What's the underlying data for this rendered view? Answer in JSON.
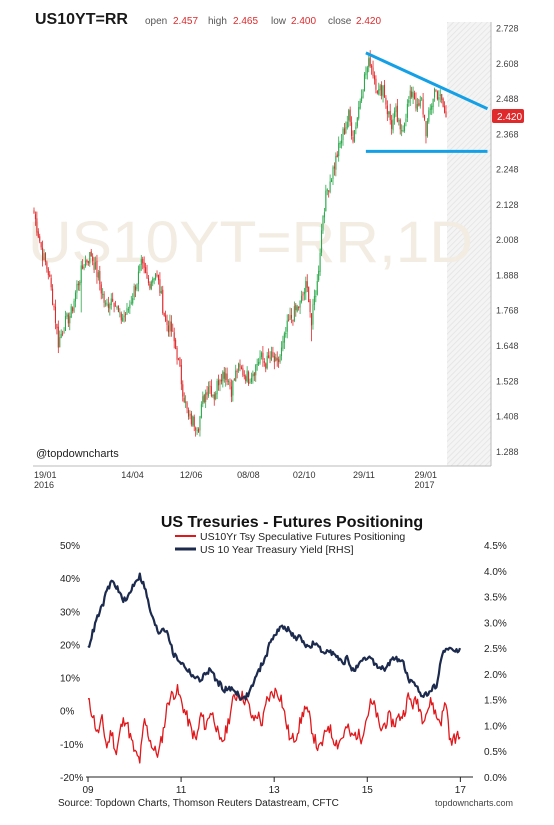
{
  "chart_data": [
    {
      "type": "candlestick",
      "header": {
        "symbol": "US10YT=RR",
        "open_label": "open",
        "open": "2.457",
        "high_label": "high",
        "high": "2.465",
        "low_label": "low",
        "low": "2.400",
        "close_label": "close",
        "close": "2.420"
      },
      "watermark": "US10YT=RR,1D",
      "credit": "@topdowncharts",
      "last_price_badge": "2.420",
      "y_ticks": [
        "2.728",
        "2.608",
        "2.488",
        "2.368",
        "2.248",
        "2.128",
        "2.008",
        "1.888",
        "1.768",
        "1.648",
        "1.528",
        "1.408",
        "1.288"
      ],
      "ylim": [
        1.24,
        2.75
      ],
      "x_ticks": [
        {
          "label": "19/01",
          "sub": "2016",
          "i": 0
        },
        {
          "label": "14/04",
          "sub": "",
          "i": 61
        },
        {
          "label": "12/06",
          "sub": "",
          "i": 102
        },
        {
          "label": "08/08",
          "sub": "",
          "i": 142
        },
        {
          "label": "02/10",
          "sub": "",
          "i": 181
        },
        {
          "label": "29/11",
          "sub": "",
          "i": 223
        },
        {
          "label": "29/01",
          "sub": "2017",
          "i": 266
        }
      ],
      "anchors": [
        [
          0,
          2.1
        ],
        [
          6,
          1.96
        ],
        [
          10,
          1.9
        ],
        [
          14,
          1.78
        ],
        [
          17,
          1.66
        ],
        [
          21,
          1.72
        ],
        [
          26,
          1.76
        ],
        [
          30,
          1.85
        ],
        [
          35,
          1.93
        ],
        [
          40,
          1.96
        ],
        [
          45,
          1.88
        ],
        [
          50,
          1.78
        ],
        [
          55,
          1.82
        ],
        [
          60,
          1.74
        ],
        [
          65,
          1.76
        ],
        [
          70,
          1.84
        ],
        [
          75,
          1.92
        ],
        [
          80,
          1.86
        ],
        [
          85,
          1.9
        ],
        [
          88,
          1.84
        ],
        [
          92,
          1.73
        ],
        [
          96,
          1.7
        ],
        [
          100,
          1.62
        ],
        [
          104,
          1.5
        ],
        [
          108,
          1.4
        ],
        [
          112,
          1.39
        ],
        [
          115,
          1.38
        ],
        [
          118,
          1.46
        ],
        [
          122,
          1.52
        ],
        [
          126,
          1.48
        ],
        [
          130,
          1.55
        ],
        [
          134,
          1.56
        ],
        [
          138,
          1.5
        ],
        [
          142,
          1.57
        ],
        [
          146,
          1.56
        ],
        [
          150,
          1.54
        ],
        [
          154,
          1.57
        ],
        [
          158,
          1.61
        ],
        [
          162,
          1.59
        ],
        [
          166,
          1.61
        ],
        [
          170,
          1.58
        ],
        [
          174,
          1.65
        ],
        [
          178,
          1.73
        ],
        [
          182,
          1.76
        ],
        [
          186,
          1.79
        ],
        [
          190,
          1.85
        ],
        [
          192,
          1.82
        ],
        [
          194,
          1.72
        ],
        [
          196,
          1.81
        ],
        [
          198,
          1.86
        ],
        [
          200,
          1.98
        ],
        [
          202,
          2.1
        ],
        [
          205,
          2.18
        ],
        [
          208,
          2.23
        ],
        [
          212,
          2.3
        ],
        [
          216,
          2.37
        ],
        [
          220,
          2.43
        ],
        [
          223,
          2.36
        ],
        [
          226,
          2.43
        ],
        [
          229,
          2.52
        ],
        [
          232,
          2.58
        ],
        [
          235,
          2.62
        ],
        [
          238,
          2.56
        ],
        [
          241,
          2.51
        ],
        [
          244,
          2.53
        ],
        [
          247,
          2.45
        ],
        [
          250,
          2.4
        ],
        [
          253,
          2.44
        ],
        [
          256,
          2.37
        ],
        [
          259,
          2.42
        ],
        [
          262,
          2.48
        ],
        [
          265,
          2.52
        ],
        [
          268,
          2.45
        ],
        [
          271,
          2.48
        ],
        [
          274,
          2.38
        ],
        [
          277,
          2.45
        ],
        [
          280,
          2.52
        ],
        [
          283,
          2.5
        ],
        [
          286,
          2.46
        ],
        [
          288,
          2.42
        ]
      ],
      "n_days": 289,
      "trendline_upper": [
        [
          232,
          2.645
        ],
        [
          317,
          2.455
        ]
      ],
      "trendline_lower": [
        [
          232,
          2.31
        ],
        [
          317,
          2.31
        ]
      ]
    },
    {
      "type": "line",
      "title": "US Tresuries - Futures Positioning",
      "series": [
        {
          "name": "US10Yr Tsy Speculative Futures Positioning",
          "color": "#e0181b",
          "axis": "left",
          "values": [
            3,
            -1,
            -7,
            -3,
            -11,
            -6,
            -13,
            -5,
            -2,
            -8,
            -13,
            -15,
            -3,
            -8,
            -12,
            -13,
            -6,
            3,
            5,
            6,
            2,
            -2,
            -6,
            -9,
            -1,
            -5,
            0,
            -3,
            -10,
            -8,
            -2,
            4,
            5,
            4,
            2,
            -3,
            -1,
            -4,
            3,
            5,
            6,
            4,
            -3,
            -9,
            -8,
            -4,
            1,
            -2,
            -8,
            -12,
            -9,
            -4,
            -8,
            -10,
            -8,
            -5,
            -8,
            -7,
            -8,
            -3,
            2,
            1,
            -6,
            -4,
            -2,
            -4,
            -2,
            -1,
            4,
            2,
            3,
            -2,
            0,
            3,
            -2,
            -3,
            3,
            -10,
            -8,
            -8
          ]
        },
        {
          "name": "US 10 Year Treasury Yield [RHS]",
          "color": "#1c2a4e",
          "axis": "right",
          "values": [
            2.5,
            2.8,
            3.1,
            3.3,
            3.6,
            3.8,
            3.7,
            3.5,
            3.4,
            3.6,
            3.8,
            3.9,
            3.7,
            3.3,
            3.0,
            2.8,
            2.9,
            2.8,
            2.4,
            2.3,
            2.2,
            2.1,
            2.0,
            1.9,
            1.9,
            2.0,
            2.1,
            1.9,
            1.8,
            1.7,
            1.7,
            1.7,
            1.6,
            1.5,
            1.6,
            1.8,
            2.0,
            2.2,
            2.4,
            2.7,
            2.8,
            2.9,
            2.9,
            2.8,
            2.7,
            2.7,
            2.6,
            2.5,
            2.6,
            2.5,
            2.4,
            2.5,
            2.4,
            2.3,
            2.2,
            2.3,
            2.1,
            2.1,
            2.2,
            2.3,
            2.3,
            2.2,
            2.1,
            2.1,
            2.2,
            2.3,
            2.3,
            2.2,
            1.9,
            1.8,
            1.7,
            1.6,
            1.6,
            1.7,
            1.8,
            2.3,
            2.5,
            2.5,
            2.4,
            2.5
          ]
        }
      ],
      "x_ticks": [
        "09",
        "11",
        "13",
        "15",
        "17"
      ],
      "x_range": [
        2009,
        2017.25
      ],
      "y_left_ticks": [
        "50%",
        "40%",
        "30%",
        "20%",
        "10%",
        "0%",
        "-10%",
        "-20%"
      ],
      "y_left_range": [
        -20,
        50
      ],
      "y_right_ticks": [
        "4.5%",
        "4.0%",
        "3.5%",
        "3.0%",
        "2.5%",
        "2.0%",
        "1.5%",
        "1.0%",
        "0.5%",
        "0.0%"
      ],
      "y_right_range": [
        0,
        4.5
      ],
      "source": "Source: Topdown Charts, Thomson Reuters Datastream, CFTC",
      "url": "topdowncharts.com"
    }
  ]
}
